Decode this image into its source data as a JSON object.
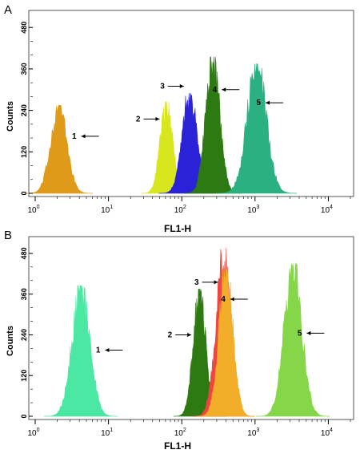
{
  "chart_data": [
    {
      "type": "area",
      "panel_label": "A",
      "xlabel": "FL1-H",
      "ylabel": "Counts",
      "xscale": "log",
      "xlim": [
        1,
        20000
      ],
      "ylim": [
        0,
        520
      ],
      "x_ticks": [
        {
          "base": "10",
          "exp": "0"
        },
        {
          "base": "10",
          "exp": "1"
        },
        {
          "base": "10",
          "exp": "2"
        },
        {
          "base": "10",
          "exp": "3"
        },
        {
          "base": "10",
          "exp": "4"
        }
      ],
      "y_ticks": [
        "0",
        "120",
        "240",
        "360",
        "480"
      ],
      "series": [
        {
          "name": "1",
          "color": "#E09A1A",
          "mean": 2.1,
          "sigma": 0.11,
          "peak": 255,
          "label_x": 5.2,
          "label_y": 165
        },
        {
          "name": "2",
          "color": "#D8E61E",
          "mean": 62,
          "sigma": 0.085,
          "peak": 265,
          "label_x": 35,
          "label_y": 215
        },
        {
          "name": "3",
          "color": "#2A22D6",
          "mean": 128,
          "sigma": 0.1,
          "peak": 290,
          "label_x": 75,
          "label_y": 310
        },
        {
          "name": "4",
          "color": "#2E7A12",
          "mean": 265,
          "sigma": 0.095,
          "peak": 395,
          "label_x": 430,
          "label_y": 300
        },
        {
          "name": "5",
          "color": "#2BB081",
          "mean": 1050,
          "sigma": 0.13,
          "peak": 375,
          "label_x": 1700,
          "label_y": 262
        }
      ]
    },
    {
      "type": "area",
      "panel_label": "B",
      "xlabel": "FL1-H",
      "ylabel": "Counts",
      "xscale": "log",
      "xlim": [
        1,
        20000
      ],
      "ylim": [
        0,
        520
      ],
      "x_ticks": [
        {
          "base": "10",
          "exp": "0"
        },
        {
          "base": "10",
          "exp": "1"
        },
        {
          "base": "10",
          "exp": "2"
        },
        {
          "base": "10",
          "exp": "3"
        },
        {
          "base": "10",
          "exp": "4"
        }
      ],
      "y_ticks": [
        "0",
        "120",
        "240",
        "360",
        "480"
      ],
      "series": [
        {
          "name": "1",
          "color": "#4BE8A4",
          "mean": 4.2,
          "sigma": 0.12,
          "peak": 385,
          "label_x": 11,
          "label_y": 195
        },
        {
          "name": "2",
          "color": "#2E7A12",
          "mean": 175,
          "sigma": 0.085,
          "peak": 375,
          "label_x": 95,
          "label_y": 240
        },
        {
          "name": "3",
          "color": "#EE4540",
          "mean": 370,
          "sigma": 0.1,
          "peak": 495,
          "label_x": 220,
          "label_y": 395
        },
        {
          "name": "4",
          "color": "#F2AE28",
          "mean": 400,
          "sigma": 0.095,
          "peak": 435,
          "label_x": 560,
          "label_y": 345
        },
        {
          "name": "5",
          "color": "#86D64A",
          "mean": 3300,
          "sigma": 0.12,
          "peak": 450,
          "label_x": 6200,
          "label_y": 245
        }
      ]
    }
  ]
}
